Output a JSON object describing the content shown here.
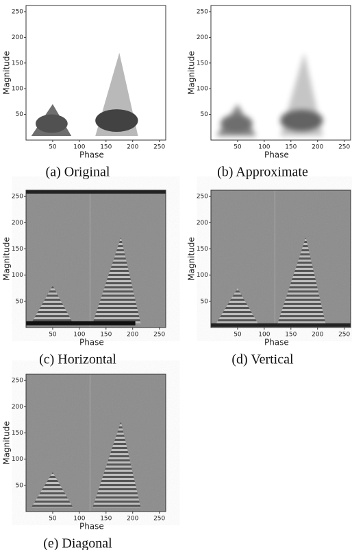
{
  "figure": {
    "panels": [
      {
        "caption": "(a)  Original",
        "xlabel": "Phase",
        "ylabel": "Magnitude",
        "background": "#ffffff",
        "xlim": [
          0,
          262
        ],
        "ylim": [
          0,
          262
        ],
        "xticks": [
          50,
          100,
          150,
          200,
          250
        ],
        "yticks": [
          50,
          100,
          150,
          200,
          250
        ]
      },
      {
        "caption": "(b)  Approximate",
        "xlabel": "Phase",
        "ylabel": "Magnitude",
        "background": "#ffffff",
        "xlim": [
          0,
          262
        ],
        "ylim": [
          0,
          262
        ],
        "xticks": [
          50,
          100,
          150,
          200,
          250
        ],
        "yticks": [
          50,
          100,
          150,
          200,
          250
        ]
      },
      {
        "caption": "(c)  Horizontal",
        "xlabel": "Phase",
        "ylabel": "Magnitude",
        "background": "#8c8c8c",
        "xlim": [
          0,
          262
        ],
        "ylim": [
          0,
          262
        ],
        "xticks": [
          50,
          100,
          150,
          200,
          250
        ],
        "yticks": [
          50,
          100,
          150,
          200,
          250
        ]
      },
      {
        "caption": "(d)  Vertical",
        "xlabel": "Phase",
        "ylabel": "Magnitude",
        "background": "#8c8c8c",
        "xlim": [
          0,
          262
        ],
        "ylim": [
          0,
          262
        ],
        "xticks": [
          50,
          100,
          150,
          200,
          250
        ],
        "yticks": [
          50,
          100,
          150,
          200,
          250
        ]
      },
      {
        "caption": "(e)  Diagonal",
        "xlabel": "Phase",
        "ylabel": "Magnitude",
        "background": "#8c8c8c",
        "xlim": [
          0,
          262
        ],
        "ylim": [
          0,
          262
        ],
        "xticks": [
          50,
          100,
          150,
          200,
          250
        ],
        "yticks": [
          50,
          100,
          150,
          200,
          250
        ]
      }
    ]
  }
}
